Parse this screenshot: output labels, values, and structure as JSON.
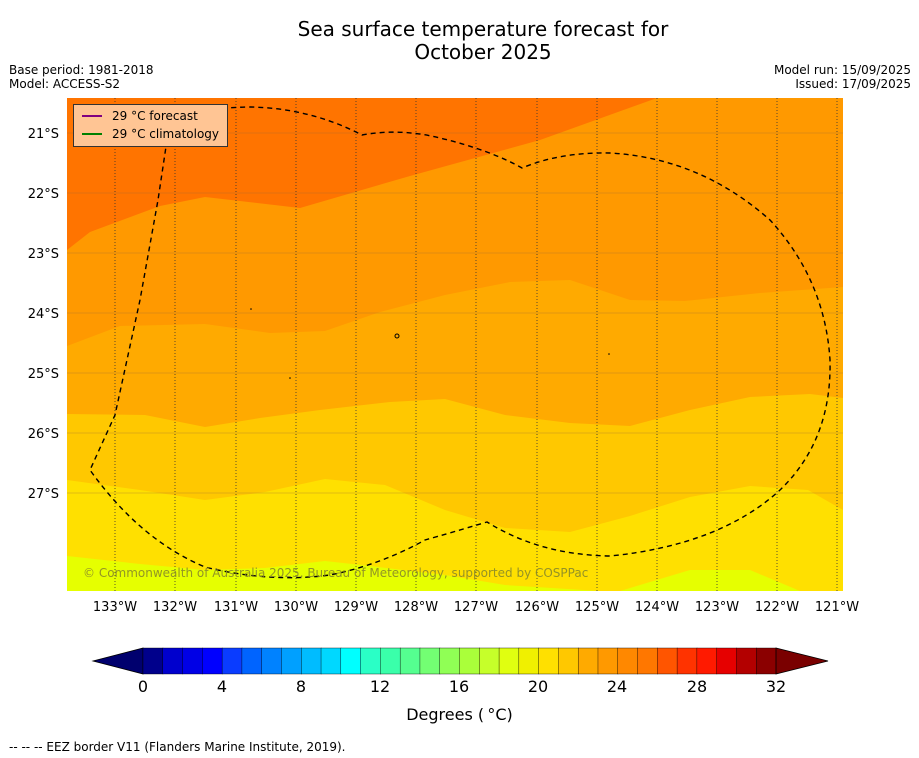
{
  "header": {
    "title_line1": "Sea surface temperature forecast for",
    "title_line2": "October 2025",
    "base_period": "Base period: 1981-2018",
    "model": "Model: ACCESS-S2",
    "model_run": "Model run: 15/09/2025",
    "issued": "Issued: 17/09/2025"
  },
  "legend": {
    "forecast": "29 °C  forecast",
    "forecast_color": "#800080",
    "climatology": "29 °C  climatology",
    "climatology_color": "#008000"
  },
  "map": {
    "lat_labels": [
      "21°S",
      "22°S",
      "23°S",
      "24°S",
      "25°S",
      "26°S",
      "27°S"
    ],
    "lon_labels": [
      "133°W",
      "132°W",
      "131°W",
      "130°W",
      "129°W",
      "128°W",
      "127°W",
      "126°W",
      "125°W",
      "124°W",
      "123°W",
      "122°W",
      "121°W"
    ],
    "copyright": "© Commonwealth of Australia 2025, Bureau of Meteorology, supported by COSPPac"
  },
  "colorbar": {
    "ticks": [
      "0",
      "4",
      "8",
      "12",
      "16",
      "20",
      "24",
      "28",
      "32"
    ],
    "label": "Degrees ( °C)",
    "colors": [
      "#00008b",
      "#0000cd",
      "#0000e6",
      "#0000ff",
      "#0a3cff",
      "#0064ff",
      "#0082ff",
      "#00a0ff",
      "#00bcff",
      "#00d8ff",
      "#00ffff",
      "#2affc6",
      "#3affaa",
      "#55ff90",
      "#73ff73",
      "#90ff55",
      "#aaff3a",
      "#c6ff2a",
      "#e0ff10",
      "#f0f000",
      "#ffe000",
      "#ffc800",
      "#ffaa00",
      "#ff9900",
      "#ff8800",
      "#ff7700",
      "#ff5500",
      "#ff3300",
      "#ff1a00",
      "#e60000",
      "#b30000",
      "#8b0000"
    ]
  },
  "footnote": "--  --  -- EEZ border V11 (Flanders Marine Institute, 2019)."
}
